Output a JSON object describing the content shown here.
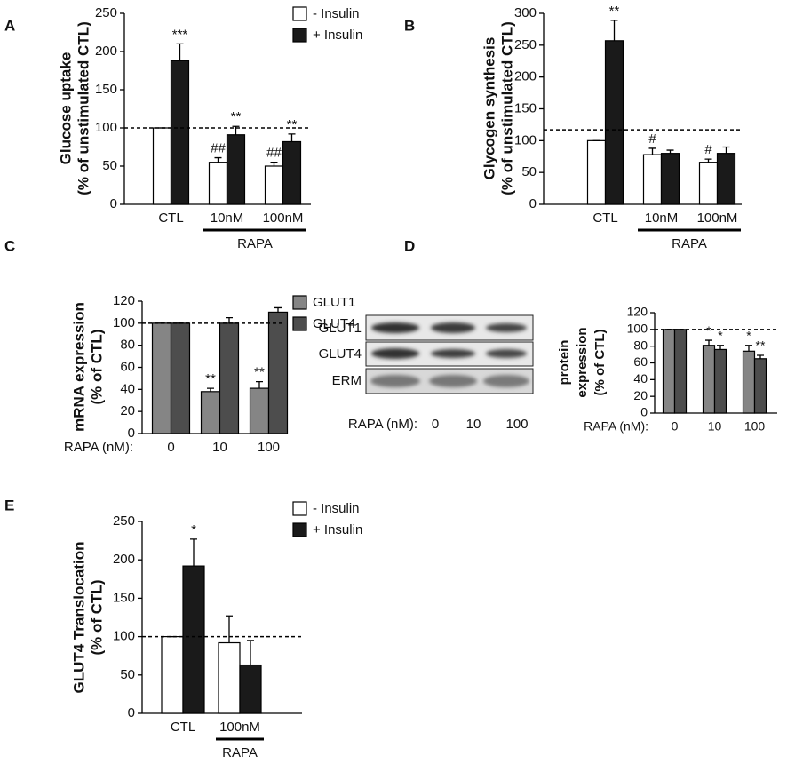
{
  "chart_data": [
    {
      "type": "bar",
      "panel": "A",
      "axis_label": [
        "Glucose uptake",
        "(% of unstimulated CTL)"
      ],
      "categories": [
        "CTL",
        "10nM",
        "100nM"
      ],
      "bracket": "RAPA",
      "series": [
        {
          "name": "- Insulin",
          "color": "#ffffff",
          "values": [
            100,
            55,
            50
          ],
          "error": [
            0,
            6,
            5
          ],
          "significance": [
            null,
            "##",
            "##"
          ]
        },
        {
          "name": "+ Insulin",
          "color": "#1a1a1a",
          "values": [
            188,
            91,
            82
          ],
          "error": [
            22,
            11,
            10
          ],
          "significance": [
            "***",
            "**",
            "**"
          ]
        }
      ],
      "ylim": [
        0,
        250
      ],
      "yticks": [
        0,
        50,
        100,
        150,
        200,
        250
      ],
      "reference_line": 100,
      "legend": true
    },
    {
      "type": "bar",
      "panel": "B",
      "axis_label": [
        "Glycogen synthesis",
        "(% of unstimulated CTL)"
      ],
      "categories": [
        "CTL",
        "10nM",
        "100nM"
      ],
      "bracket": "RAPA",
      "series": [
        {
          "color": "#ffffff",
          "values": [
            100,
            78,
            66
          ],
          "error": [
            0,
            10,
            5
          ],
          "significance": [
            null,
            "#",
            "#"
          ]
        },
        {
          "color": "#1a1a1a",
          "values": [
            257,
            80,
            80
          ],
          "error": [
            32,
            5,
            10
          ],
          "significance": [
            "**",
            null,
            null
          ]
        }
      ],
      "ylim": [
        0,
        300
      ],
      "yticks": [
        0,
        50,
        100,
        150,
        200,
        250,
        300
      ],
      "reference_line": 117
    },
    {
      "type": "bar",
      "panel": "C",
      "axis_label": [
        "mRNA expression",
        "(% of CTL)"
      ],
      "x_label": "RAPA (nM):",
      "categories": [
        "0",
        "10",
        "100"
      ],
      "series": [
        {
          "name": "GLUT1",
          "color": "#858585",
          "values": [
            100,
            38,
            41
          ],
          "error": [
            0,
            3,
            6
          ],
          "significance": [
            null,
            "**",
            "**"
          ]
        },
        {
          "name": "GLUT4",
          "color": "#4d4d4d",
          "values": [
            100,
            100,
            110
          ],
          "error": [
            0,
            5,
            4
          ],
          "significance": [
            null,
            null,
            null
          ]
        }
      ],
      "ylim": [
        0,
        120
      ],
      "yticks": [
        0,
        20,
        40,
        60,
        80,
        100,
        120
      ],
      "reference_line": 100,
      "legend": true
    },
    {
      "type": "bar",
      "panel": "D",
      "axis_label": [
        "protein",
        "expression",
        "(% of CTL)"
      ],
      "x_label": "RAPA (nM):",
      "categories": [
        "0",
        "10",
        "100"
      ],
      "series": [
        {
          "color": "#858585",
          "values": [
            100,
            81,
            74
          ],
          "error": [
            0,
            6,
            7
          ],
          "significance": [
            null,
            "*",
            "*"
          ]
        },
        {
          "color": "#4d4d4d",
          "values": [
            100,
            76,
            65
          ],
          "error": [
            0,
            5,
            4
          ],
          "significance": [
            null,
            "*",
            "**"
          ]
        }
      ],
      "ylim": [
        0,
        120
      ],
      "yticks": [
        0,
        20,
        40,
        60,
        80,
        100,
        120
      ],
      "reference_line": 100
    },
    {
      "type": "bar",
      "panel": "E",
      "axis_label": [
        "GLUT4 Translocation",
        "(% of CTL)"
      ],
      "categories": [
        "CTL",
        "100nM"
      ],
      "bracket": "RAPA",
      "series": [
        {
          "name": "- Insulin",
          "color": "#ffffff",
          "values": [
            100,
            92
          ],
          "error": [
            0,
            35
          ],
          "significance": [
            null,
            null
          ]
        },
        {
          "name": "+ Insulin",
          "color": "#1a1a1a",
          "values": [
            192,
            63
          ],
          "error": [
            35,
            32
          ],
          "significance": [
            "*",
            null
          ]
        }
      ],
      "ylim": [
        0,
        250
      ],
      "yticks": [
        0,
        50,
        100,
        150,
        200,
        250
      ],
      "reference_line": 100,
      "legend": true
    }
  ],
  "blot": {
    "rows": [
      "GLUT1",
      "GLUT4",
      "ERM"
    ],
    "x_label": "RAPA (nM):",
    "lanes": [
      "0",
      "10",
      "100"
    ]
  }
}
